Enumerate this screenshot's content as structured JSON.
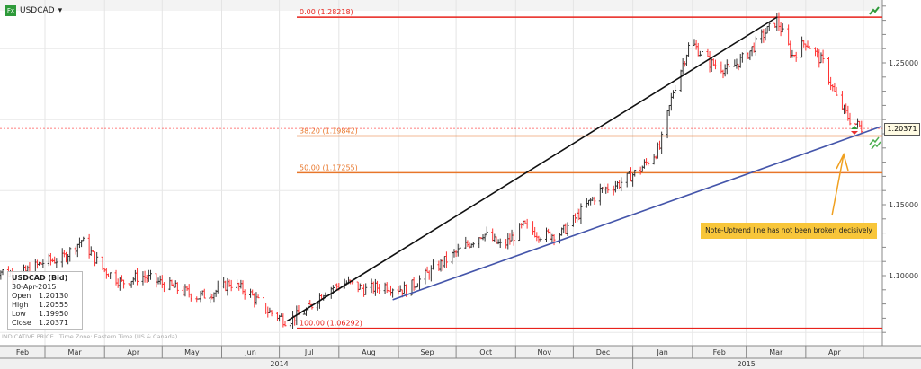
{
  "header": {
    "symbol": "USDCAD",
    "badge": "Fx",
    "dropdown_icon": "caret-down-icon"
  },
  "info_box": {
    "title": "USDCAD (Bid)",
    "date": "30-Apr-2015",
    "rows": [
      {
        "label": "Open",
        "value": "1.20130"
      },
      {
        "label": "High",
        "value": "1.20555"
      },
      {
        "label": "Low",
        "value": "1.19950"
      },
      {
        "label": "Close",
        "value": "1.20371"
      }
    ]
  },
  "footer": {
    "indicative": "INDICATIVE PRICE",
    "timezone": "Time Zone: Eastern Time (US & Canada)"
  },
  "annotation": {
    "note": "Note-Uptrend line has not been broken decisively"
  },
  "last_price": "1.20371",
  "colors": {
    "up_bar": "#333333",
    "down_bar": "#ff3333",
    "fib_major": "#e8231c",
    "fib_minor": "#e8762a",
    "trend_black": "#111111",
    "trend_blue": "#4455aa",
    "note_bg": "#f8c63a"
  },
  "chart_data": {
    "type": "ohlc",
    "ylim": [
      1.0575,
      1.2945
    ],
    "yticks": [
      "1.25000",
      "1.15000",
      "1.10000"
    ],
    "grid": true,
    "x_months": [
      "Feb",
      "Mar",
      "Apr",
      "May",
      "Jun",
      "Jul",
      "Aug",
      "Sep",
      "Oct",
      "Nov",
      "Dec",
      "Jan",
      "Feb",
      "Mar",
      "Apr"
    ],
    "x_years": [
      "2014",
      "2015"
    ],
    "close_path": [
      [
        "2014-02-01",
        1.105
      ],
      [
        "2014-02-15",
        1.1
      ],
      [
        "2014-03-01",
        1.11
      ],
      [
        "2014-03-10",
        1.112
      ],
      [
        "2014-03-20",
        1.125
      ],
      [
        "2014-03-31",
        1.105
      ],
      [
        "2014-04-10",
        1.095
      ],
      [
        "2014-04-20",
        1.1
      ],
      [
        "2014-04-30",
        1.095
      ],
      [
        "2014-05-10",
        1.09
      ],
      [
        "2014-05-20",
        1.085
      ],
      [
        "2014-05-31",
        1.09
      ],
      [
        "2014-06-05",
        1.095
      ],
      [
        "2014-06-15",
        1.088
      ],
      [
        "2014-06-25",
        1.075
      ],
      [
        "2014-07-05",
        1.068
      ],
      [
        "2014-07-15",
        1.075
      ],
      [
        "2014-07-25",
        1.09
      ],
      [
        "2014-08-05",
        1.095
      ],
      [
        "2014-08-15",
        1.09
      ],
      [
        "2014-08-25",
        1.093
      ],
      [
        "2014-09-05",
        1.09
      ],
      [
        "2014-09-15",
        1.1
      ],
      [
        "2014-09-25",
        1.11
      ],
      [
        "2014-10-05",
        1.12
      ],
      [
        "2014-10-15",
        1.13
      ],
      [
        "2014-10-25",
        1.12
      ],
      [
        "2014-11-05",
        1.135
      ],
      [
        "2014-11-15",
        1.128
      ],
      [
        "2014-11-25",
        1.13
      ],
      [
        "2014-12-05",
        1.145
      ],
      [
        "2014-12-15",
        1.16
      ],
      [
        "2014-12-25",
        1.165
      ],
      [
        "2015-01-05",
        1.175
      ],
      [
        "2015-01-15",
        1.19
      ],
      [
        "2015-01-22",
        1.23
      ],
      [
        "2015-01-31",
        1.265
      ],
      [
        "2015-02-10",
        1.25
      ],
      [
        "2015-02-20",
        1.245
      ],
      [
        "2015-03-01",
        1.255
      ],
      [
        "2015-03-10",
        1.27
      ],
      [
        "2015-03-17",
        1.28
      ],
      [
        "2015-03-25",
        1.255
      ],
      [
        "2015-04-01",
        1.265
      ],
      [
        "2015-04-10",
        1.25
      ],
      [
        "2015-04-17",
        1.225
      ],
      [
        "2015-04-24",
        1.21
      ],
      [
        "2015-04-30",
        1.204
      ]
    ],
    "fib_levels": [
      {
        "label": "0.00 (1.28218)",
        "price": 1.28218,
        "kind": "major"
      },
      {
        "label": "38.20 (1.19842)",
        "price": 1.19842,
        "kind": "minor"
      },
      {
        "label": "50.00 (1.17255)",
        "price": 1.17255,
        "kind": "minor"
      },
      {
        "label": "100.00 (1.06292)",
        "price": 1.06292,
        "kind": "major"
      }
    ],
    "trendlines": [
      {
        "name": "",
        "from": [
          "2014-07-05",
          1.068
        ],
        "to": [
          "2015-03-17",
          1.2822
        ],
        "color": "trend_black"
      },
      {
        "name": "",
        "from": [
          "2014-08-29",
          1.083
        ],
        "to": [
          "2015-05-10",
          1.205
        ],
        "color": "trend_blue"
      }
    ]
  }
}
